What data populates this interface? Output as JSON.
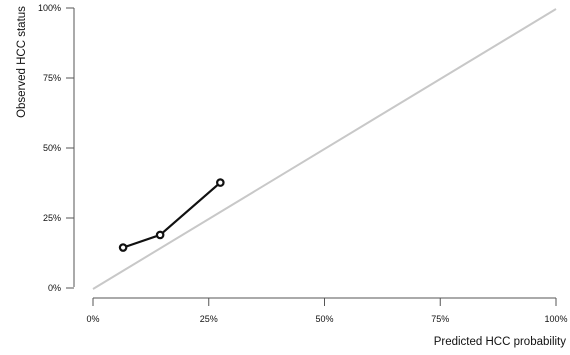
{
  "chart_data": {
    "type": "line",
    "title": "",
    "xlabel": "Predicted HCC probability",
    "ylabel": "Observed HCC status",
    "xlim": [
      0,
      100
    ],
    "ylim": [
      0,
      100
    ],
    "x_ticks": [
      "0%",
      "25%",
      "50%",
      "75%",
      "100%"
    ],
    "y_ticks": [
      "0%",
      "25%",
      "50%",
      "75%",
      "100%"
    ],
    "x_tick_values": [
      0,
      25,
      50,
      75,
      100
    ],
    "y_tick_values": [
      0,
      25,
      50,
      75,
      100
    ],
    "grid": false,
    "legend": "none",
    "reference_line": {
      "x": [
        0,
        100
      ],
      "y": [
        0,
        100
      ],
      "color": "#c8c8c8"
    },
    "series": [
      {
        "x": [
          6.5,
          14.5,
          27.5
        ],
        "y": [
          14.8,
          19.3,
          38.0
        ],
        "color": "#111111",
        "marker": "open-circle"
      }
    ]
  }
}
